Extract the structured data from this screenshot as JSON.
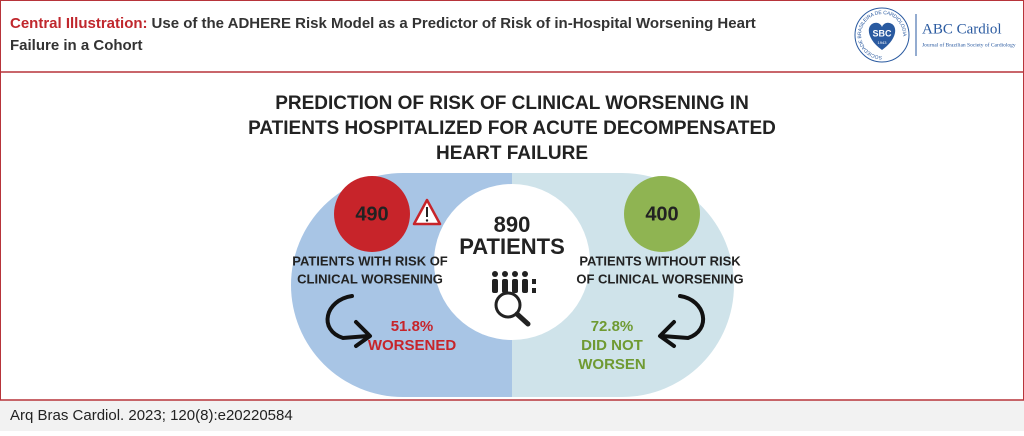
{
  "header": {
    "label": "Central Illustration:",
    "title_line1": "Use of the ADHERE Risk Model as a Predictor of Risk of in-Hospital Worsening Heart",
    "title_line2": "Failure in a Cohort"
  },
  "logo": {
    "ring_text": "SOCIEDADE BRASILEIRA DE CARDIOLOGIA",
    "badge": "SBC",
    "year": "1943",
    "journal": "ABC Cardiol",
    "journal_subtitle": "Journal of Brazilian Society of Cardiology"
  },
  "main": {
    "title": [
      "PREDICTION OF RISK OF CLINICAL WORSENING IN",
      "PATIENTS HOSPITALIZED FOR ACUTE DECOMPENSATED",
      "HEART FAILURE"
    ],
    "total": {
      "number": "890",
      "label": "PATIENTS"
    },
    "left": {
      "number": "490",
      "label": [
        "PATIENTS WITH RISK OF",
        "CLINICAL WORSENING"
      ],
      "percent": "51.8%",
      "outcome": [
        "WORSENED"
      ]
    },
    "right": {
      "number": "400",
      "label": [
        "PATIENTS WITHOUT RISK",
        "OF CLINICAL WORSENING"
      ],
      "percent": "72.8%",
      "outcome": [
        "DID NOT",
        "WORSEN"
      ]
    }
  },
  "footer": {
    "citation": "Arq Bras Cardiol. 2023; 120(8):e20220584"
  }
}
